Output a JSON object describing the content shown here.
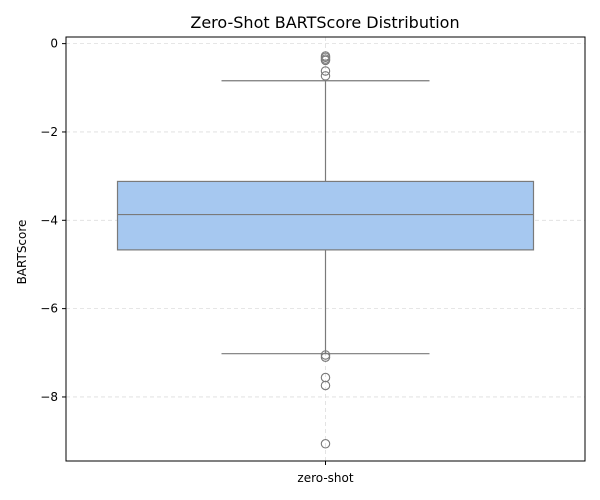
{
  "chart_data": {
    "type": "box",
    "title": "Zero-Shot BARTScore Distribution",
    "xlabel": "",
    "ylabel": "BARTScore",
    "categories": [
      "zero-shot"
    ],
    "ylim": [
      -9.45,
      0.15
    ],
    "yticks": [
      0,
      -2,
      -4,
      -6,
      -8
    ],
    "ytick_labels": [
      "0",
      "−2",
      "−4",
      "−6",
      "−8"
    ],
    "grid": true,
    "box": {
      "q1": -4.67,
      "median": -3.87,
      "q3": -3.12,
      "whisker_low": -7.02,
      "whisker_high": -0.84,
      "fliers": [
        -0.28,
        -0.31,
        -0.35,
        -0.38,
        -0.62,
        -0.73,
        -7.05,
        -7.1,
        -7.56,
        -7.74,
        -9.06
      ]
    },
    "colors": {
      "box_fill": "#a6c8f0",
      "box_edge": "#7a7a7a",
      "grid": "#dddddd",
      "axes": "#000000"
    }
  }
}
